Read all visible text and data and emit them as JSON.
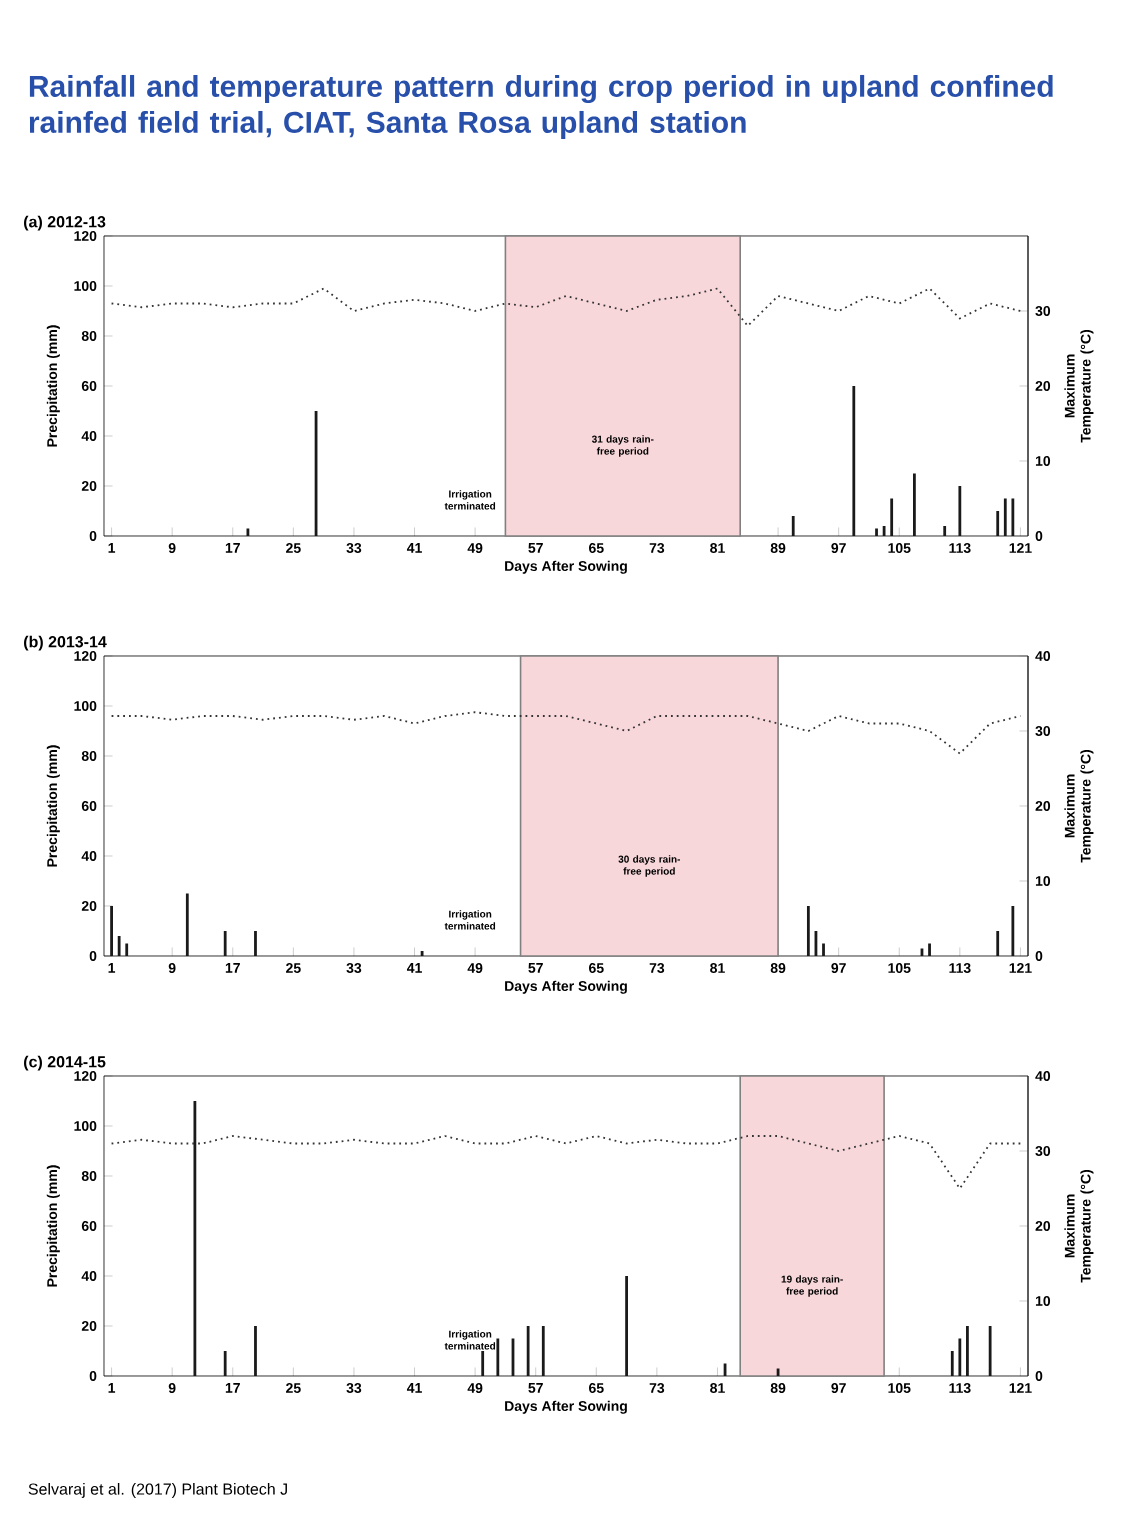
{
  "chart_data": [
    {
      "type": "bar",
      "title": "Rainfall and temperature pattern during crop period in upland confined rainfed field trial, CIAT, Santa Rosa upland station",
      "subtitle": "(a) 2012-13",
      "xlabel": "Days After Sowing",
      "ylabel": "Precipitation (mm)",
      "y2label": "Maximum Temperature (°C)",
      "xlim": [
        0,
        122
      ],
      "xticks": [
        1,
        9,
        17,
        25,
        33,
        41,
        49,
        57,
        65,
        73,
        81,
        89,
        97,
        105,
        113,
        121
      ],
      "ylim": [
        0,
        120
      ],
      "yticks": [
        0,
        20,
        40,
        60,
        80,
        100,
        120
      ],
      "y2lim": [
        0,
        40
      ],
      "y2ticks": [
        0,
        10,
        20,
        30
      ],
      "series": [
        {
          "color": "#1a1a1a",
          "x": [
            19,
            28,
            91,
            99,
            102,
            103,
            104,
            107,
            111,
            113,
            118,
            119,
            120
          ],
          "values": [
            3,
            50,
            8,
            60,
            3,
            4,
            15,
            25,
            4,
            20,
            10,
            15,
            15
          ]
        },
        {
          "type": "line",
          "axis": "y2",
          "color": "#333333",
          "line_style": "dotted",
          "x": [
            1,
            5,
            9,
            13,
            17,
            21,
            25,
            29,
            33,
            37,
            41,
            45,
            49,
            53,
            57,
            61,
            65,
            69,
            73,
            77,
            81,
            85,
            89,
            93,
            97,
            101,
            105,
            109,
            113,
            117,
            121
          ],
          "values": [
            31,
            30.5,
            31,
            31,
            30.5,
            31,
            31,
            33,
            30,
            31,
            31.5,
            31,
            30,
            31,
            30.5,
            32,
            31,
            30,
            31.5,
            32,
            33,
            28,
            32,
            31,
            30,
            32,
            31,
            33,
            29,
            31,
            30
          ]
        }
      ],
      "bands": [
        {
          "axis": "x",
          "from": 53,
          "to": 84,
          "color": "#f8d7da",
          "label": "31 days rain-free period"
        }
      ],
      "annotations": [
        "Irrigation terminated"
      ]
    },
    {
      "type": "bar",
      "subtitle": "(b) 2013-14",
      "xlabel": "Days After Sowing",
      "ylabel": "Precipitation (mm)",
      "y2label": "Maximum Temperature (°C)",
      "xlim": [
        0,
        122
      ],
      "xticks": [
        1,
        9,
        17,
        25,
        33,
        41,
        49,
        57,
        65,
        73,
        81,
        89,
        97,
        105,
        113,
        121
      ],
      "ylim": [
        0,
        120
      ],
      "yticks": [
        0,
        20,
        40,
        60,
        80,
        100,
        120
      ],
      "y2lim": [
        0,
        40
      ],
      "y2ticks": [
        0,
        10,
        20,
        30,
        40
      ],
      "series": [
        {
          "color": "#1a1a1a",
          "x": [
            1,
            2,
            3,
            11,
            16,
            20,
            42,
            93,
            94,
            95,
            108,
            109,
            118,
            120
          ],
          "values": [
            20,
            8,
            5,
            25,
            10,
            10,
            2,
            20,
            10,
            5,
            3,
            5,
            10,
            20
          ]
        },
        {
          "type": "line",
          "axis": "y2",
          "color": "#333333",
          "line_style": "dotted",
          "x": [
            1,
            5,
            9,
            13,
            17,
            21,
            25,
            29,
            33,
            37,
            41,
            45,
            49,
            53,
            57,
            61,
            65,
            69,
            73,
            77,
            81,
            85,
            89,
            93,
            97,
            101,
            105,
            109,
            113,
            117,
            121
          ],
          "values": [
            32,
            32,
            31.5,
            32,
            32,
            31.5,
            32,
            32,
            31.5,
            32,
            31,
            32,
            32.5,
            32,
            32,
            32,
            31,
            30,
            32,
            32,
            32,
            32,
            31,
            30,
            32,
            31,
            31,
            30,
            27,
            31,
            32
          ]
        }
      ],
      "bands": [
        {
          "axis": "x",
          "from": 55,
          "to": 89,
          "color": "#f8d7da",
          "label": "30 days rain-free period"
        }
      ],
      "annotations": [
        "Irrigation terminated"
      ]
    },
    {
      "type": "bar",
      "subtitle": "(c) 2014-15",
      "xlabel": "Days After Sowing",
      "ylabel": "Precipitation (mm)",
      "y2label": "Maximum Temperature (°C)",
      "xlim": [
        0,
        122
      ],
      "xticks": [
        1,
        9,
        17,
        25,
        33,
        41,
        49,
        57,
        65,
        73,
        81,
        89,
        97,
        105,
        113,
        121
      ],
      "ylim": [
        0,
        120
      ],
      "yticks": [
        0,
        20,
        40,
        60,
        80,
        100,
        120
      ],
      "y2lim": [
        0,
        40
      ],
      "y2ticks": [
        0,
        10,
        20,
        30,
        40
      ],
      "series": [
        {
          "color": "#1a1a1a",
          "x": [
            12,
            16,
            20,
            50,
            52,
            54,
            56,
            58,
            69,
            82,
            89,
            112,
            113,
            114,
            117
          ],
          "values": [
            110,
            10,
            20,
            10,
            15,
            15,
            20,
            20,
            40,
            5,
            3,
            10,
            15,
            20,
            20
          ]
        },
        {
          "type": "line",
          "axis": "y2",
          "color": "#333333",
          "line_style": "dotted",
          "x": [
            1,
            5,
            9,
            13,
            17,
            21,
            25,
            29,
            33,
            37,
            41,
            45,
            49,
            53,
            57,
            61,
            65,
            69,
            73,
            77,
            81,
            85,
            89,
            93,
            97,
            101,
            105,
            109,
            113,
            117,
            121
          ],
          "values": [
            31,
            31.5,
            31,
            31,
            32,
            31.5,
            31,
            31,
            31.5,
            31,
            31,
            32,
            31,
            31,
            32,
            31,
            32,
            31,
            31.5,
            31,
            31,
            32,
            32,
            31,
            30,
            31,
            32,
            31,
            25,
            31,
            31
          ]
        }
      ],
      "bands": [
        {
          "axis": "x",
          "from": 84,
          "to": 103,
          "color": "#f8d7da",
          "label": "19 days rain-free period"
        }
      ],
      "annotations": [
        "Irrigation terminated",
        "Selvaraj et al. (2017) Plant Biotech J"
      ]
    }
  ]
}
